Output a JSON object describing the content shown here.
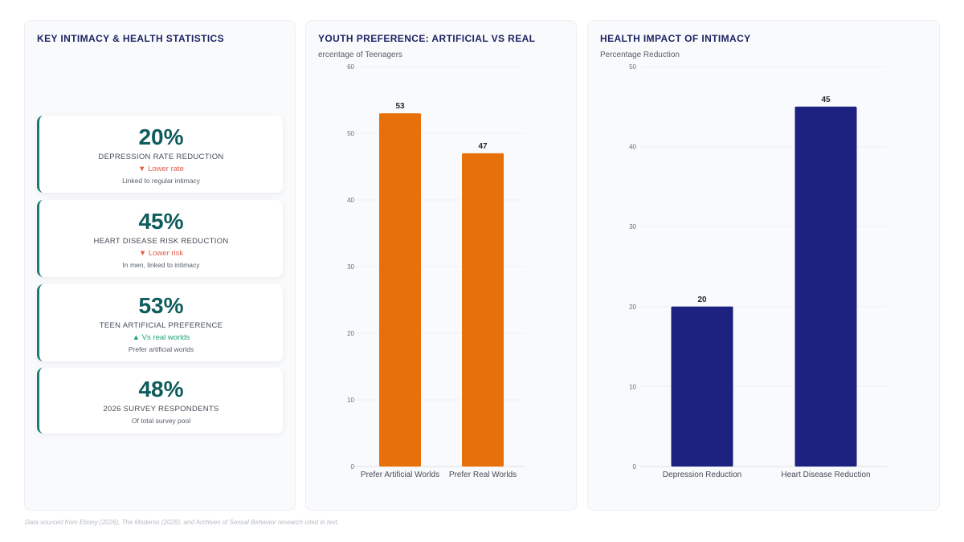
{
  "stats_panel": {
    "title": "KEY INTIMACY & HEALTH STATISTICS",
    "cards": [
      {
        "value": "20%",
        "label": "DEPRESSION RATE REDUCTION",
        "trend": "▼ Lower rate",
        "trend_dir": "down",
        "desc": "Linked to regular intimacy"
      },
      {
        "value": "45%",
        "label": "HEART DISEASE RISK REDUCTION",
        "trend": "▼ Lower risk",
        "trend_dir": "down",
        "desc": "In men, linked to intimacy"
      },
      {
        "value": "53%",
        "label": "TEEN ARTIFICIAL PREFERENCE",
        "trend": "▲ Vs real worlds",
        "trend_dir": "up",
        "desc": "Prefer artificial worlds"
      },
      {
        "value": "48%",
        "label": "2026 SURVEY RESPONDENTS",
        "trend": "",
        "trend_dir": "",
        "desc": "Of total survey pool"
      }
    ]
  },
  "chart_data": [
    {
      "type": "bar",
      "title": "YOUTH PREFERENCE: ARTIFICIAL VS REAL",
      "ylabel": "ercentage of Teenagers",
      "categories": [
        "Prefer Artificial Worlds",
        "Prefer Real Worlds"
      ],
      "values": [
        53,
        47
      ],
      "ylim": [
        0,
        60
      ],
      "yticks": [
        0,
        10,
        20,
        30,
        40,
        50,
        60
      ],
      "color": "#e8700a",
      "grid": true
    },
    {
      "type": "bar",
      "title": "HEALTH IMPACT OF INTIMACY",
      "ylabel": "Percentage Reduction",
      "categories": [
        "Depression Reduction",
        "Heart Disease Reduction"
      ],
      "values": [
        20,
        45
      ],
      "ylim": [
        0,
        50
      ],
      "yticks": [
        0,
        10,
        20,
        30,
        40,
        50
      ],
      "color": "#1d2280",
      "grid": true
    }
  ],
  "footer": "Data sourced from Ebony (2026), The Moderns (2026), and Archives of Sexual Behavior research cited in text."
}
